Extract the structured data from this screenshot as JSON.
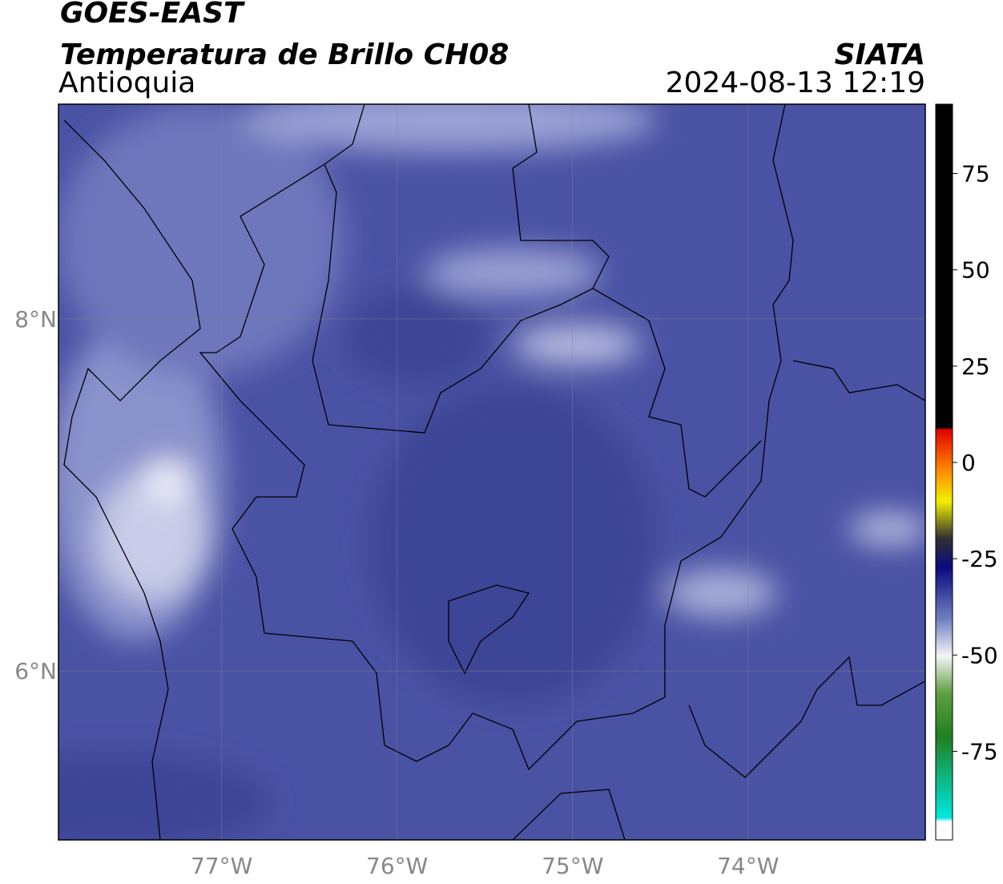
{
  "header": {
    "title": "GOES-EAST",
    "subtitle": "Temperatura de Brillo CH08",
    "region": "Antioquia",
    "source": "SIATA",
    "timestamp": "2024-08-13 12:19"
  },
  "map": {
    "xlim": [
      -77.93,
      -72.99
    ],
    "ylim": [
      5.04,
      9.22
    ],
    "xticks": [
      {
        "value": -77,
        "label": "77°W"
      },
      {
        "value": -76,
        "label": "76°W"
      },
      {
        "value": -75,
        "label": "75°W"
      },
      {
        "value": -74,
        "label": "74°W"
      }
    ],
    "yticks": [
      {
        "value": 8,
        "label": "8°N"
      },
      {
        "value": 6,
        "label": "6°N"
      }
    ],
    "grid": true
  },
  "colorbar": {
    "ylim": [
      -98,
      93
    ],
    "yticks": [
      75,
      50,
      25,
      0,
      -25,
      -50,
      -75
    ]
  }
}
